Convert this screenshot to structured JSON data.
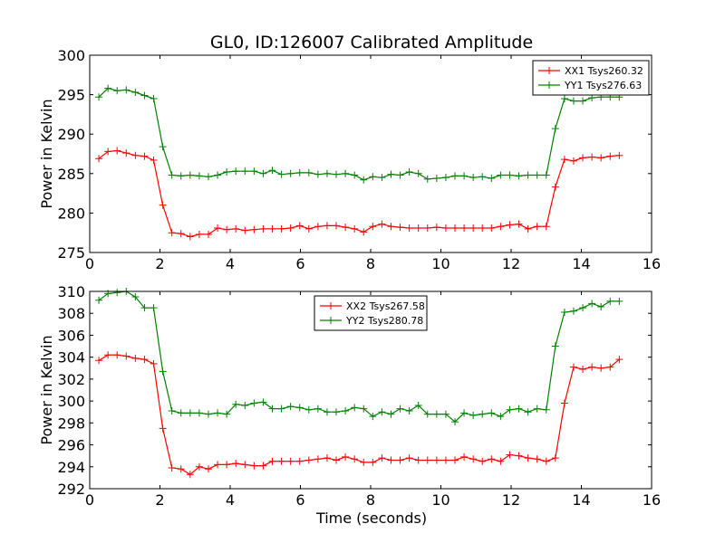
{
  "chart_data": [
    {
      "type": "line",
      "title": "GL0, ID:126007 Calibrated Amplitude",
      "xlabel": "",
      "ylabel": "Power in Kelvin",
      "xlim": [
        0,
        16
      ],
      "ylim": [
        275,
        300
      ],
      "xticks": [
        0,
        2,
        4,
        6,
        8,
        10,
        12,
        14,
        16
      ],
      "yticks": [
        275,
        280,
        285,
        290,
        295,
        300
      ],
      "legend_position": "top-right",
      "x": [
        0.26,
        0.52,
        0.78,
        1.04,
        1.3,
        1.56,
        1.82,
        2.08,
        2.34,
        2.6,
        2.86,
        3.12,
        3.38,
        3.64,
        3.9,
        4.16,
        4.42,
        4.68,
        4.94,
        5.2,
        5.46,
        5.72,
        5.98,
        6.24,
        6.5,
        6.76,
        7.02,
        7.28,
        7.54,
        7.8,
        8.06,
        8.32,
        8.58,
        8.84,
        9.1,
        9.36,
        9.62,
        9.88,
        10.14,
        10.4,
        10.66,
        10.92,
        11.18,
        11.44,
        11.7,
        11.96,
        12.22,
        12.48,
        12.74,
        13.0,
        13.26,
        13.52,
        13.78,
        14.04,
        14.3,
        14.56,
        14.82,
        15.08
      ],
      "series": [
        {
          "name": "XX1 Tsys260.32",
          "color": "#ff0000",
          "values": [
            286.9,
            287.8,
            287.9,
            287.6,
            287.3,
            287.2,
            286.7,
            281.0,
            277.5,
            277.4,
            277.0,
            277.3,
            277.3,
            278.1,
            277.9,
            278.0,
            277.8,
            277.9,
            278.0,
            278.0,
            278.0,
            278.1,
            278.4,
            278.0,
            278.3,
            278.4,
            278.4,
            278.2,
            278.0,
            277.6,
            278.3,
            278.6,
            278.3,
            278.2,
            278.1,
            278.1,
            278.1,
            278.2,
            278.1,
            278.1,
            278.1,
            278.1,
            278.1,
            278.1,
            278.3,
            278.5,
            278.6,
            278.0,
            278.3,
            278.3,
            283.3,
            286.8,
            286.6,
            287.0,
            287.1,
            287.0,
            287.2,
            287.3
          ]
        },
        {
          "name": "YY1 Tsys276.63",
          "color": "#008000",
          "values": [
            294.7,
            295.8,
            295.5,
            295.6,
            295.3,
            294.9,
            294.5,
            288.4,
            284.8,
            284.7,
            284.8,
            284.7,
            284.6,
            284.8,
            285.2,
            285.3,
            285.3,
            285.3,
            285.0,
            285.4,
            284.9,
            285.0,
            285.1,
            285.1,
            284.9,
            285.0,
            284.9,
            285.0,
            284.8,
            284.2,
            284.6,
            284.5,
            284.9,
            284.8,
            285.2,
            285.0,
            284.3,
            284.4,
            284.5,
            284.7,
            284.7,
            284.5,
            284.6,
            284.4,
            284.8,
            284.8,
            284.7,
            284.8,
            284.8,
            284.8,
            290.7,
            294.5,
            294.2,
            294.2,
            294.6,
            294.7,
            294.7,
            294.7
          ]
        }
      ]
    },
    {
      "type": "line",
      "title": "",
      "xlabel": "Time (seconds)",
      "ylabel": "Power in Kelvin",
      "xlim": [
        0,
        16
      ],
      "ylim": [
        292,
        310
      ],
      "xticks": [
        0,
        2,
        4,
        6,
        8,
        10,
        12,
        14,
        16
      ],
      "yticks": [
        292,
        294,
        296,
        298,
        300,
        302,
        304,
        306,
        308,
        310
      ],
      "legend_position": "top-center",
      "x": [
        0.26,
        0.52,
        0.78,
        1.04,
        1.3,
        1.56,
        1.82,
        2.08,
        2.34,
        2.6,
        2.86,
        3.12,
        3.38,
        3.64,
        3.9,
        4.16,
        4.42,
        4.68,
        4.94,
        5.2,
        5.46,
        5.72,
        5.98,
        6.24,
        6.5,
        6.76,
        7.02,
        7.28,
        7.54,
        7.8,
        8.06,
        8.32,
        8.58,
        8.84,
        9.1,
        9.36,
        9.62,
        9.88,
        10.14,
        10.4,
        10.66,
        10.92,
        11.18,
        11.44,
        11.7,
        11.96,
        12.22,
        12.48,
        12.74,
        13.0,
        13.26,
        13.52,
        13.78,
        14.04,
        14.3,
        14.56,
        14.82,
        15.08
      ],
      "series": [
        {
          "name": "XX2 Tsys267.58",
          "color": "#ff0000",
          "values": [
            303.7,
            304.2,
            304.2,
            304.1,
            303.9,
            303.8,
            303.4,
            297.5,
            293.9,
            293.8,
            293.3,
            294.0,
            293.8,
            294.2,
            294.2,
            294.3,
            294.2,
            294.1,
            294.1,
            294.5,
            294.5,
            294.5,
            294.5,
            294.6,
            294.7,
            294.8,
            294.6,
            294.9,
            294.7,
            294.4,
            294.4,
            294.8,
            294.6,
            294.6,
            294.8,
            294.6,
            294.6,
            294.6,
            294.6,
            294.6,
            294.9,
            294.7,
            294.5,
            294.7,
            294.5,
            295.1,
            295.0,
            294.8,
            294.7,
            294.5,
            294.8,
            299.8,
            303.1,
            302.9,
            303.1,
            303.0,
            303.1,
            303.8
          ]
        },
        {
          "name": "YY2 Tsys280.78",
          "color": "#008000",
          "values": [
            309.2,
            309.8,
            309.9,
            310.0,
            309.5,
            308.5,
            308.5,
            302.7,
            299.1,
            298.9,
            298.9,
            298.9,
            298.8,
            298.9,
            298.8,
            299.7,
            299.6,
            299.8,
            299.9,
            299.3,
            299.3,
            299.5,
            299.4,
            299.2,
            299.3,
            299.0,
            299.0,
            299.1,
            299.4,
            299.3,
            298.6,
            299.0,
            298.8,
            299.3,
            299.1,
            299.6,
            298.8,
            298.8,
            298.8,
            298.1,
            298.9,
            298.7,
            298.8,
            298.9,
            298.6,
            299.2,
            299.3,
            299.0,
            299.3,
            299.2,
            305.0,
            308.1,
            308.2,
            308.5,
            308.9,
            308.6,
            309.1,
            309.1
          ]
        }
      ]
    }
  ]
}
